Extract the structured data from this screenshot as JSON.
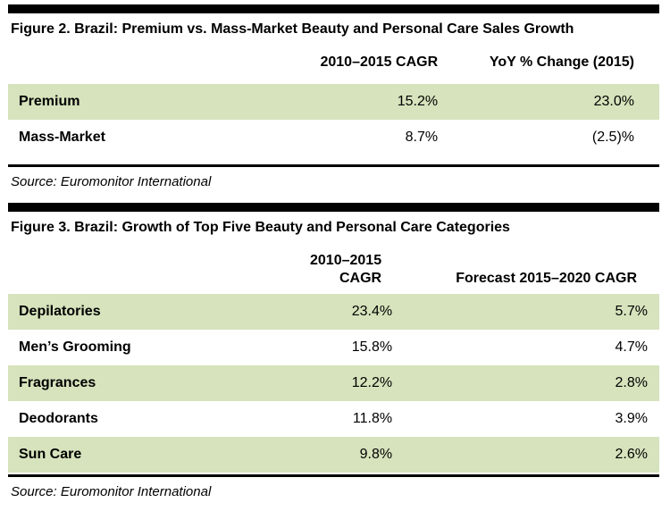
{
  "colors": {
    "row_highlight": "#d6e3bc",
    "rule_black": "#000000",
    "text": "#000000",
    "background": "#ffffff"
  },
  "chart_data": [
    {
      "type": "table",
      "title": "Figure 2. Brazil: Premium vs. Mass-Market Beauty and Personal Care Sales Growth",
      "columns": [
        "",
        "2010–2015 CAGR",
        "YoY % Change (2015)"
      ],
      "rows": [
        [
          "Premium",
          "15.2%",
          "23.0%"
        ],
        [
          "Mass-Market",
          "8.7%",
          "(2.5)%"
        ]
      ],
      "source": "Source: Euromonitor International",
      "layout_hint": "alternating rows shaded light green starting with first data row; thick black rule above title, thin black rule below table"
    },
    {
      "type": "table",
      "title": "Figure 3. Brazil: Growth of Top Five Beauty and Personal Care Categories",
      "columns": [
        "",
        "2010–2015 CAGR",
        "Forecast 2015–2020 CAGR"
      ],
      "rows": [
        [
          "Depilatories",
          "23.4%",
          "5.7%"
        ],
        [
          "Men’s Grooming",
          "15.8%",
          "4.7%"
        ],
        [
          "Fragrances",
          "12.2%",
          "2.8%"
        ],
        [
          "Deodorants",
          "11.8%",
          "3.9%"
        ],
        [
          "Sun Care",
          "9.8%",
          "2.6%"
        ]
      ],
      "source": "Source: Euromonitor International",
      "layout_hint": "alternating rows shaded light green starting with first data row; thick black rule above title, thin black rule below table"
    }
  ]
}
